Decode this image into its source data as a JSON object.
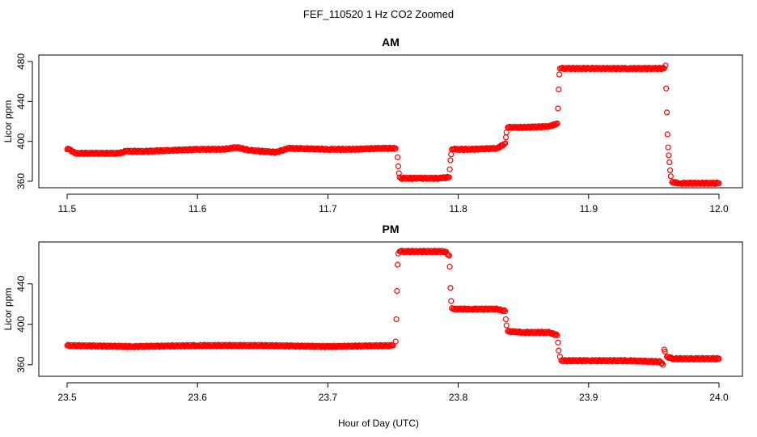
{
  "figure": {
    "title": "FEF_110520  1 Hz CO2 Zoomed",
    "xlabel": "Hour of Day (UTC)"
  },
  "chart_data": [
    {
      "type": "scatter",
      "title": "AM",
      "xlabel": "Hour of Day (UTC)",
      "ylabel": "Licor ppm",
      "xlim": [
        11.5,
        12.0
      ],
      "ylim": [
        360,
        480
      ],
      "xticks": [
        "11.5",
        "11.6",
        "11.7",
        "11.8",
        "11.9",
        "12.0"
      ],
      "yticks": [
        "360",
        "400",
        "440",
        "480"
      ],
      "color": "#ff0000",
      "marker": "open-circle",
      "series": [
        {
          "x": [
            11.5,
            11.502,
            11.506,
            11.52,
            11.54,
            11.545,
            11.56,
            11.58,
            11.6,
            11.62,
            11.63,
            11.64,
            11.66,
            11.67,
            11.7,
            11.72,
            11.74,
            11.752,
            11.7535,
            11.754,
            11.7545,
            11.755,
            11.756,
            11.77,
            11.785,
            11.793,
            11.7935,
            11.794,
            11.7945,
            11.795,
            11.796,
            11.81,
            11.83,
            11.836,
            11.8365,
            11.837,
            11.838,
            11.85,
            11.87,
            11.876,
            11.8765,
            11.877,
            11.8775,
            11.878,
            11.879,
            11.9,
            11.93,
            11.958,
            11.959,
            11.9595,
            11.96,
            11.9605,
            11.961,
            11.9615,
            11.962,
            11.9625,
            11.963,
            11.964,
            11.97,
            11.985,
            12.0
          ],
          "y": [
            392,
            392,
            388,
            388,
            388,
            390,
            390,
            391,
            392,
            392,
            394,
            391,
            389,
            393,
            392,
            392,
            393,
            393,
            384,
            375,
            368,
            364,
            363,
            363,
            363,
            364,
            372,
            381,
            387,
            392,
            392,
            392,
            393,
            398,
            404,
            409,
            414,
            414,
            415,
            418,
            433,
            452,
            467,
            473,
            473,
            473,
            473,
            473,
            476,
            453,
            429,
            407,
            394,
            386,
            379,
            371,
            365,
            359,
            358,
            358,
            358
          ]
        }
      ]
    },
    {
      "type": "scatter",
      "title": "PM",
      "xlabel": "Hour of Day (UTC)",
      "ylabel": "Licor ppm",
      "xlim": [
        23.5,
        24.0
      ],
      "ylim": [
        355,
        475
      ],
      "xticks": [
        "23.5",
        "23.6",
        "23.7",
        "23.8",
        "23.9",
        "24.0"
      ],
      "yticks": [
        "360",
        "400",
        "440"
      ],
      "color": "#ff0000",
      "marker": "open-circle",
      "series": [
        {
          "x": [
            23.5,
            23.55,
            23.6,
            23.65,
            23.7,
            23.75,
            23.752,
            23.7525,
            23.753,
            23.7535,
            23.754,
            23.755,
            23.77,
            23.79,
            23.793,
            23.7935,
            23.794,
            23.7945,
            23.795,
            23.796,
            23.81,
            23.83,
            23.836,
            23.8365,
            23.837,
            23.838,
            23.85,
            23.87,
            23.876,
            23.8765,
            23.877,
            23.878,
            23.879,
            23.9,
            23.93,
            23.955,
            23.957,
            23.958,
            23.9585,
            23.96,
            23.965,
            23.98,
            24.0
          ],
          "y": [
            379,
            378,
            379,
            379,
            378,
            379,
            383,
            405,
            433,
            459,
            470,
            472,
            472,
            472,
            468,
            457,
            436,
            423,
            416,
            415,
            415,
            415,
            413,
            405,
            399,
            393,
            392,
            392,
            389,
            382,
            374,
            368,
            364,
            364,
            364,
            363,
            360,
            375,
            373,
            368,
            366,
            366,
            366
          ]
        }
      ]
    }
  ]
}
